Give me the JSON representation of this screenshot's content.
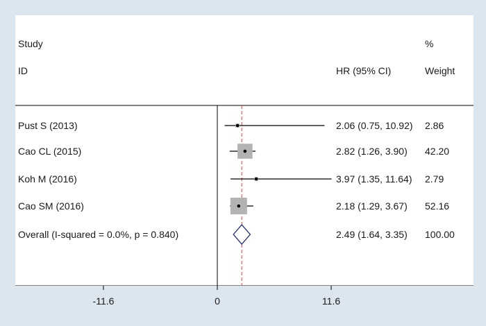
{
  "chart_data": {
    "type": "forest",
    "header": {
      "study_line1": "Study",
      "study_line2": "ID",
      "hr_header": "HR (95% CI)",
      "weight_line1": "%",
      "weight_line2": "Weight"
    },
    "studies": [
      {
        "label": "Pust S (2013)",
        "hr": 2.06,
        "lo": 0.75,
        "hi": 10.92,
        "ci_text": "2.06 (0.75, 10.92)",
        "weight": 2.86,
        "weight_text": "2.86"
      },
      {
        "label": "Cao CL (2015)",
        "hr": 2.82,
        "lo": 1.26,
        "hi": 3.9,
        "ci_text": "2.82 (1.26, 3.90)",
        "weight": 42.2,
        "weight_text": "42.20"
      },
      {
        "label": "Koh M (2016)",
        "hr": 3.97,
        "lo": 1.35,
        "hi": 11.64,
        "ci_text": "3.97 (1.35, 11.64)",
        "weight": 2.79,
        "weight_text": "2.79"
      },
      {
        "label": "Cao SM (2016)",
        "hr": 2.18,
        "lo": 1.29,
        "hi": 3.67,
        "ci_text": "2.18 (1.29, 3.67)",
        "weight": 52.16,
        "weight_text": "52.16"
      }
    ],
    "overall": {
      "label": "Overall  (I-squared = 0.0%, p = 0.840)",
      "hr": 2.49,
      "lo": 1.64,
      "hi": 3.35,
      "ci_text": "2.49 (1.64, 3.35)",
      "weight_text": "100.00"
    },
    "x_ticks": [
      {
        "value": -11.6,
        "label": "-11.6"
      },
      {
        "value": 0,
        "label": "0"
      },
      {
        "value": 11.6,
        "label": "11.6"
      }
    ],
    "null_line": 0,
    "colors": {
      "background": "#dbe6ef",
      "plot_bg": "#ffffff",
      "box": "#b3b3b3",
      "diamond": "#1f2a6b",
      "overall_line": "#c0504d",
      "text": "#1a1a1a"
    }
  }
}
